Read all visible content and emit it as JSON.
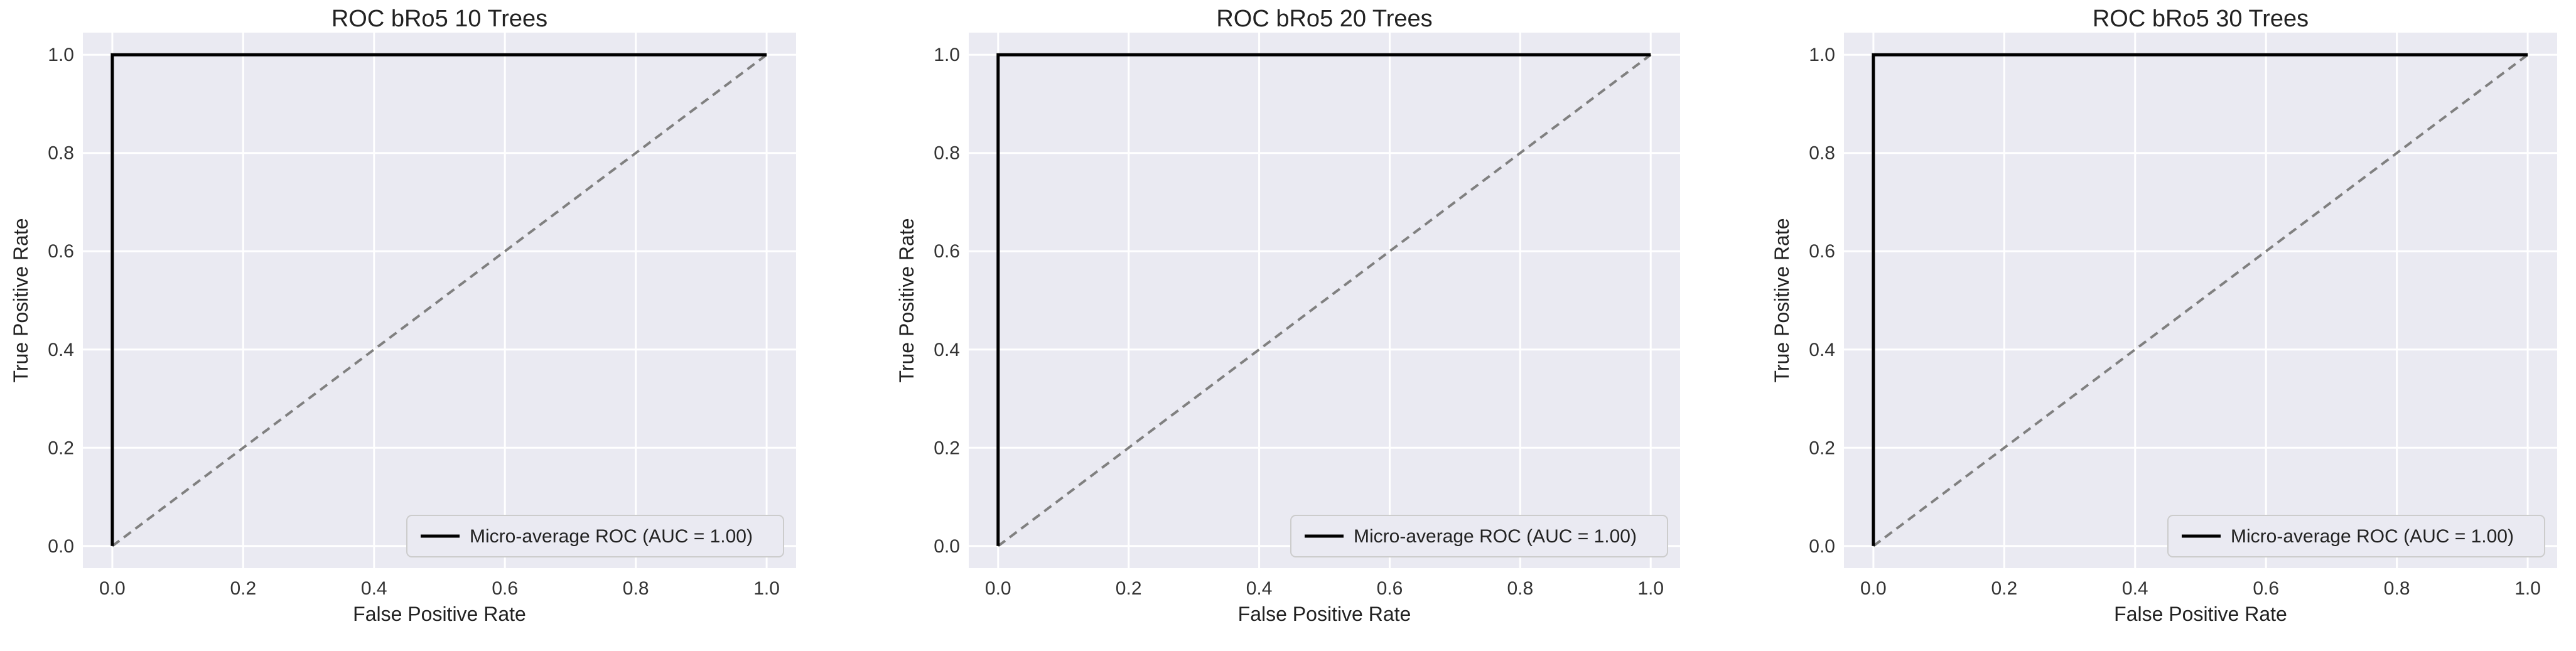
{
  "chart_data": [
    {
      "type": "line",
      "title": "ROC bRo5 10 Trees",
      "xlabel": "False Positive Rate",
      "ylabel": "True Positive Rate",
      "xlim": [
        0.0,
        1.0
      ],
      "ylim": [
        0.0,
        1.0
      ],
      "xticks": [
        "0.0",
        "0.2",
        "0.4",
        "0.6",
        "0.8",
        "1.0"
      ],
      "yticks": [
        "0.0",
        "0.2",
        "0.4",
        "0.6",
        "0.8",
        "1.0"
      ],
      "grid": true,
      "legend_position": "bottom-right",
      "series": [
        {
          "name": "Micro-average ROC (AUC = 1.00)",
          "x": [
            0.0,
            0.0,
            1.0
          ],
          "y": [
            0.0,
            1.0,
            1.0
          ],
          "color": "#000000",
          "style": "solid"
        },
        {
          "x": [
            0.0,
            1.0
          ],
          "y": [
            0.0,
            1.0
          ],
          "color": "#808080",
          "style": "dashed"
        }
      ]
    },
    {
      "type": "line",
      "title": "ROC bRo5 20 Trees",
      "xlabel": "False Positive Rate",
      "ylabel": "True Positive Rate",
      "xlim": [
        0.0,
        1.0
      ],
      "ylim": [
        0.0,
        1.0
      ],
      "xticks": [
        "0.0",
        "0.2",
        "0.4",
        "0.6",
        "0.8",
        "1.0"
      ],
      "yticks": [
        "0.0",
        "0.2",
        "0.4",
        "0.6",
        "0.8",
        "1.0"
      ],
      "grid": true,
      "legend_position": "bottom-right",
      "series": [
        {
          "name": "Micro-average ROC (AUC = 1.00)",
          "x": [
            0.0,
            0.0,
            1.0
          ],
          "y": [
            0.0,
            1.0,
            1.0
          ],
          "color": "#000000",
          "style": "solid"
        },
        {
          "x": [
            0.0,
            1.0
          ],
          "y": [
            0.0,
            1.0
          ],
          "color": "#808080",
          "style": "dashed"
        }
      ]
    },
    {
      "type": "line",
      "title": "ROC bRo5 30 Trees",
      "xlabel": "False Positive Rate",
      "ylabel": "True Positive Rate",
      "xlim": [
        0.0,
        1.0
      ],
      "ylim": [
        0.0,
        1.0
      ],
      "xticks": [
        "0.0",
        "0.2",
        "0.4",
        "0.6",
        "0.8",
        "1.0"
      ],
      "yticks": [
        "0.0",
        "0.2",
        "0.4",
        "0.6",
        "0.8",
        "1.0"
      ],
      "grid": true,
      "legend_position": "bottom-right",
      "series": [
        {
          "name": "Micro-average ROC (AUC = 1.00)",
          "x": [
            0.0,
            0.0,
            1.0
          ],
          "y": [
            0.0,
            1.0,
            1.0
          ],
          "color": "#000000",
          "style": "solid"
        },
        {
          "x": [
            0.0,
            1.0
          ],
          "y": [
            0.0,
            1.0
          ],
          "color": "#808080",
          "style": "dashed"
        }
      ]
    }
  ]
}
